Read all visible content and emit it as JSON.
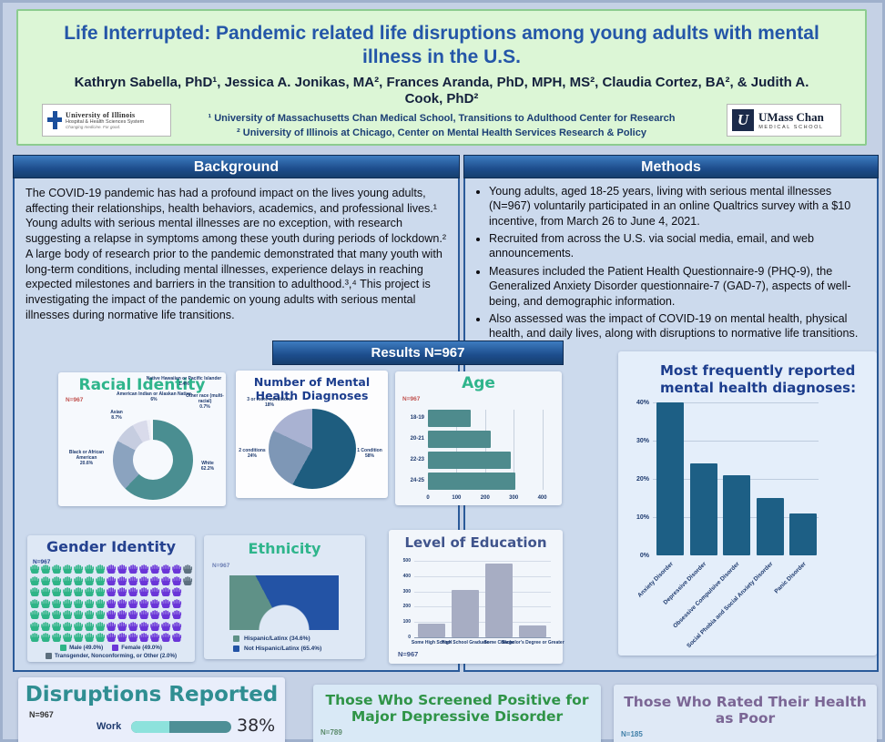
{
  "header": {
    "title": "Life Interrupted: Pandemic related life disruptions among young adults with mental illness in the U.S.",
    "authors": "Kathryn Sabella, PhD¹, Jessica A. Jonikas, MA², Frances Aranda, PhD, MPH, MS², Claudia Cortez, BA², & Judith A. Cook, PhD²",
    "affiliations": [
      "¹ University of Massachusetts Chan Medical School, Transitions to Adulthood Center for Research",
      "² University of Illinois at Chicago, Center on Mental Health Services Research & Policy"
    ],
    "logo_left": {
      "line1": "University of Illinois",
      "line2": "Hospital & Health Sciences System",
      "line3": "Changing medicine. For good."
    },
    "logo_right": {
      "line1": "UMass Chan",
      "line2": "MEDICAL SCHOOL",
      "mark": "U"
    }
  },
  "sections": {
    "background": {
      "heading": "Background",
      "text": "The COVID-19 pandemic has had a profound impact on the lives young adults, affecting their relationships, health behaviors, academics, and professional lives.¹ Young adults with serious mental illnesses are no exception, with research suggesting a relapse in symptoms among these youth during periods of lockdown.² A large body of research prior to the pandemic demonstrated that many youth with long-term conditions, including mental illnesses, experience delays in reaching expected milestones and barriers in the transition to adulthood.³,⁴ This project is investigating the impact of the pandemic on young adults with serious mental illnesses during normative life transitions."
    },
    "methods": {
      "heading": "Methods",
      "bullets": [
        "Young adults, aged 18-25 years, living with serious mental illnesses (N=967) voluntarily participated in an online Qualtrics survey with a $10 incentive, from March 26 to June 4, 2021.",
        "Recruited from across the U.S. via social media, email, and web announcements.",
        "Measures included the Patient Health Questionnaire-9 (PHQ-9), the Generalized Anxiety Disorder questionnaire-7 (GAD-7), aspects of well-being, and demographic information.",
        "Also assessed was the impact of COVID-19 on mental health, physical health, and daily lives, along with disruptions to normative life transitions."
      ]
    },
    "results_banner": "Results N=967"
  },
  "chart_data": [
    {
      "id": "racial-identity",
      "type": "pie",
      "subtype": "donut",
      "title": "Racial Identity",
      "title_color": "#2fb58c",
      "n_label": "N=967",
      "n_color": "#c0504d",
      "labels": [
        "White",
        "Black or African American",
        "Asian",
        "American Indian or Alaskan Native",
        "Native Hawaiian or Pacific Islander",
        "Other race (multi-racial)"
      ],
      "values": [
        62.2,
        20.6,
        8.7,
        6.0,
        1.4,
        0.7
      ],
      "colors": [
        "#4a8e91",
        "#8ba3bf",
        "#c6cde0",
        "#d9dbeb",
        "#edeff7",
        "#f9fafc"
      ]
    },
    {
      "id": "mental-health-diagnoses",
      "type": "pie",
      "title": "Number of Mental Health Diagnoses",
      "title_color": "#1c3d8d",
      "labels": [
        "1 Condition",
        "2 conditions",
        "3 or more conditions"
      ],
      "values": [
        58,
        24,
        18
      ],
      "colors": [
        "#1e5d7f",
        "#7e97b6",
        "#a9b2d2"
      ]
    },
    {
      "id": "age",
      "type": "bar",
      "orientation": "horizontal",
      "title": "Age",
      "title_color": "#2fb58c",
      "n_label": "N=967",
      "n_color": "#c0504d",
      "categories": [
        "18-19",
        "20-21",
        "22-23",
        "24-25"
      ],
      "values": [
        150,
        220,
        290,
        305
      ],
      "xticks": [
        0,
        100,
        200,
        300,
        400
      ],
      "xmax": 430,
      "bar_color": "#4e8b8d"
    },
    {
      "id": "top-diagnoses",
      "type": "bar",
      "orientation": "vertical",
      "title": "Most frequently reported mental health diagnoses:",
      "title_color": "#1c3d8d",
      "categories": [
        "Anxiety Disorder",
        "Depressive Disorder",
        "Obsessive Compulsive Disorder",
        "Social Phobia and Social Anxiety Disorder",
        "Panic Disorder"
      ],
      "values": [
        40,
        24,
        21,
        15,
        11
      ],
      "yticks": [
        "40%",
        "30%",
        "20%",
        "10%",
        "0%"
      ],
      "ymax": 42,
      "bar_color": "#1d5f85"
    },
    {
      "id": "gender-identity",
      "type": "pictogram",
      "title": "Gender Identity",
      "title_color": "#24418f",
      "n_label": "N=967",
      "n_color": "#24418f",
      "legend": [
        {
          "label": "Male (49.0%)",
          "color": "#2eb487"
        },
        {
          "label": "Female (49.0%)",
          "color": "#6a35d8"
        },
        {
          "label": "Transgender, Nonconforming, or Other (2.0%)",
          "color": "#5c6f7e"
        }
      ],
      "values": [
        49,
        49,
        2
      ],
      "rows": [
        [
          7,
          7,
          1
        ],
        [
          7,
          7,
          1
        ],
        [
          7,
          7,
          0
        ],
        [
          7,
          7,
          0
        ],
        [
          7,
          7,
          0
        ],
        [
          7,
          7,
          0
        ],
        [
          7,
          7,
          0
        ]
      ]
    },
    {
      "id": "ethnicity",
      "type": "pie",
      "subtype": "half-donut",
      "title": "Ethnicity",
      "title_color": "#2fb58c",
      "n_label": "N=967",
      "n_color": "#6b7db3",
      "labels": [
        "Hispanic/Latinx (34.6%)",
        "Not Hispanic/Latinx (65.4%)"
      ],
      "values": [
        34.6,
        65.4
      ],
      "colors": [
        "#5f9187",
        "#2353a5"
      ]
    },
    {
      "id": "level-of-education",
      "type": "bar",
      "orientation": "vertical",
      "title": "Level of Education",
      "title_color": "#40548c",
      "n_label": "N=967",
      "n_color": "#3a4f85",
      "categories": [
        "Some High School",
        "High School Graduate",
        "Some College",
        "Bachelor's Degree or Greater"
      ],
      "values": [
        90,
        310,
        480,
        75
      ],
      "yticks": [
        500,
        400,
        300,
        200,
        100,
        0
      ],
      "ymax": 500,
      "bar_color": "#a7adc3"
    }
  ],
  "bottom": {
    "disruptions": {
      "title": "Disruptions Reported",
      "title_color": "#2f8e92",
      "n_label": "N=967",
      "item_label": "Work",
      "percent": 38,
      "value_label": "38%",
      "bar_bg": "#4e8f96",
      "bar_fill": "#8de2dc"
    },
    "depression": {
      "title": "Those Who Screened Positive for Major Depressive Disorder",
      "title_color": "#2f9447",
      "n_label": "N=789",
      "n_color": "#5a8a6a"
    },
    "health": {
      "title": "Those Who Rated Their Health as Poor",
      "title_color": "#7b6695",
      "n_label": "N=185",
      "n_color": "#3f7fa8"
    }
  }
}
